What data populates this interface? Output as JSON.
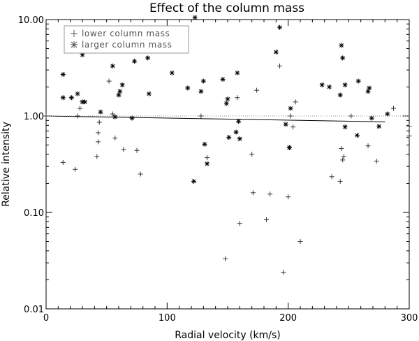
{
  "chart_data": {
    "type": "scatter",
    "title": "Effect of the column mass",
    "xlabel": "Radial velocity (km/s)",
    "ylabel": "Relative intensity",
    "xlim": [
      0,
      300
    ],
    "ylim": [
      0.01,
      10
    ],
    "yscale": "log",
    "x_ticks": [
      0,
      100,
      200,
      300
    ],
    "x_tick_labels": [
      "0",
      "100",
      "200",
      "300"
    ],
    "y_ticks": [
      0.01,
      0.1,
      1,
      10
    ],
    "y_tick_labels": [
      "0.01",
      "0.10",
      "1.00",
      "10.00"
    ],
    "legend_position": "top-left",
    "series": [
      {
        "name": "lower column mass",
        "marker": "plus",
        "points": [
          [
            0,
            1.0
          ],
          [
            14,
            0.33
          ],
          [
            24,
            0.28
          ],
          [
            26,
            1.0
          ],
          [
            28,
            1.2
          ],
          [
            42,
            0.38
          ],
          [
            43,
            0.54
          ],
          [
            43,
            0.67
          ],
          [
            44,
            0.86
          ],
          [
            52,
            2.3
          ],
          [
            55,
            1.05
          ],
          [
            57,
            0.59
          ],
          [
            64,
            0.45
          ],
          [
            75,
            0.44
          ],
          [
            78,
            0.25
          ],
          [
            128,
            1.0
          ],
          [
            133,
            0.37
          ],
          [
            148,
            0.033
          ],
          [
            158,
            1.55
          ],
          [
            160,
            0.077
          ],
          [
            170,
            0.4
          ],
          [
            171,
            0.16
          ],
          [
            174,
            1.85
          ],
          [
            182,
            0.084
          ],
          [
            185,
            0.155
          ],
          [
            193,
            3.3
          ],
          [
            196,
            0.024
          ],
          [
            200,
            0.145
          ],
          [
            202,
            1.0
          ],
          [
            204,
            0.77
          ],
          [
            206,
            1.4
          ],
          [
            210,
            0.05
          ],
          [
            236,
            0.235
          ],
          [
            243,
            0.21
          ],
          [
            244,
            0.46
          ],
          [
            245,
            0.35
          ],
          [
            246,
            0.38
          ],
          [
            252,
            1.0
          ],
          [
            266,
            0.49
          ],
          [
            273,
            0.34
          ],
          [
            287,
            1.2
          ],
          [
            300,
            0.62
          ],
          [
            300,
            0.78
          ]
        ]
      },
      {
        "name": "larger column mass",
        "marker": "asterisk",
        "points": [
          [
            14,
            2.7
          ],
          [
            14,
            1.55
          ],
          [
            21,
            1.55
          ],
          [
            26,
            1.7
          ],
          [
            30,
            1.4
          ],
          [
            30,
            4.3
          ],
          [
            32,
            1.4
          ],
          [
            45,
            1.1
          ],
          [
            55,
            3.3
          ],
          [
            57,
            0.98
          ],
          [
            60,
            1.65
          ],
          [
            61,
            1.8
          ],
          [
            63,
            2.1
          ],
          [
            71,
            0.95
          ],
          [
            73,
            3.7
          ],
          [
            84,
            4.0
          ],
          [
            85,
            1.7
          ],
          [
            104,
            2.8
          ],
          [
            117,
            1.95
          ],
          [
            122,
            0.21
          ],
          [
            123,
            10.5
          ],
          [
            128,
            1.8
          ],
          [
            130,
            2.3
          ],
          [
            131,
            0.51
          ],
          [
            133,
            0.32
          ],
          [
            146,
            2.4
          ],
          [
            149,
            1.35
          ],
          [
            150,
            1.5
          ],
          [
            151,
            0.6
          ],
          [
            157,
            0.68
          ],
          [
            158,
            2.8
          ],
          [
            159,
            0.88
          ],
          [
            160,
            0.58
          ],
          [
            190,
            4.6
          ],
          [
            193,
            8.3
          ],
          [
            198,
            0.82
          ],
          [
            201,
            0.47
          ],
          [
            201,
            0.47
          ],
          [
            202,
            1.2
          ],
          [
            228,
            2.1
          ],
          [
            234,
            2.0
          ],
          [
            243,
            1.65
          ],
          [
            244,
            5.4
          ],
          [
            245,
            4.0
          ],
          [
            247,
            0.77
          ],
          [
            247,
            2.1
          ],
          [
            257,
            0.63
          ],
          [
            258,
            2.3
          ],
          [
            266,
            1.8
          ],
          [
            267,
            1.95
          ],
          [
            269,
            0.95
          ],
          [
            275,
            0.78
          ],
          [
            282,
            1.05
          ]
        ]
      }
    ],
    "fit_lines": [
      {
        "style": "solid",
        "points": [
          [
            0,
            1.0
          ],
          [
            280,
            0.87
          ]
        ]
      },
      {
        "style": "dotted",
        "points": [
          [
            0,
            1.0
          ],
          [
            300,
            1.0
          ]
        ]
      }
    ]
  }
}
